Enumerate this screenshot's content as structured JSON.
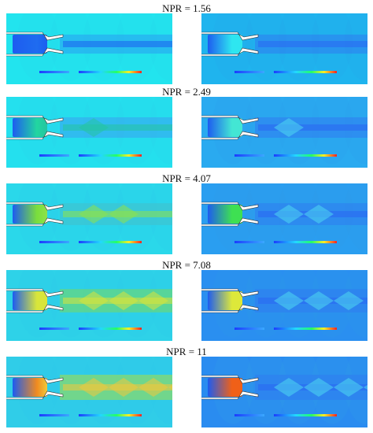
{
  "rows": [
    {
      "label": "NPR = 1.56"
    },
    {
      "label": "NPR = 2.49"
    },
    {
      "label": "NPR = 4.07"
    },
    {
      "label": "NPR = 7.08"
    },
    {
      "label": "NPR = 11"
    }
  ],
  "colors": {
    "background_left": "#22e0ee",
    "background_right": "#2aa6ee",
    "nozzle_fill": "#ffffff",
    "nozzle_edge": "#333333",
    "scale_low": "#1b3dff",
    "scale_mid": "#22ff66",
    "scale_high": "#ff2222"
  }
}
